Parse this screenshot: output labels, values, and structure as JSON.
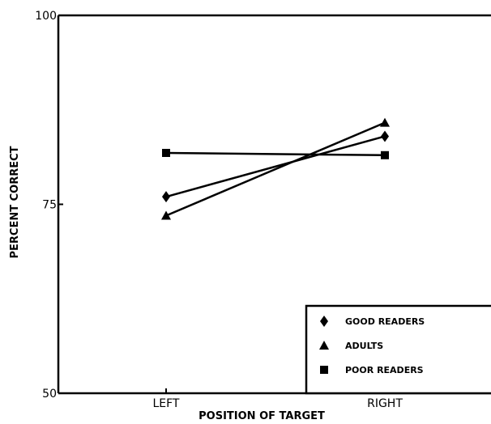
{
  "chart_data": {
    "type": "line",
    "xlabel": "POSITION OF TARGET",
    "ylabel": "PERCENT CORRECT",
    "categories": [
      "LEFT",
      "RIGHT"
    ],
    "ylim": [
      50,
      100
    ],
    "yticks": [
      "50",
      "75",
      "100"
    ],
    "grid": false,
    "legend_placement": "bottom-right",
    "series": [
      {
        "name": "GOOD READERS",
        "marker": "diamond",
        "values": [
          76.0,
          84.0
        ]
      },
      {
        "name": "ADULTS",
        "marker": "triangle",
        "values": [
          73.5,
          85.8
        ]
      },
      {
        "name": "POOR READERS",
        "marker": "square",
        "values": [
          81.8,
          81.5
        ]
      }
    ]
  }
}
